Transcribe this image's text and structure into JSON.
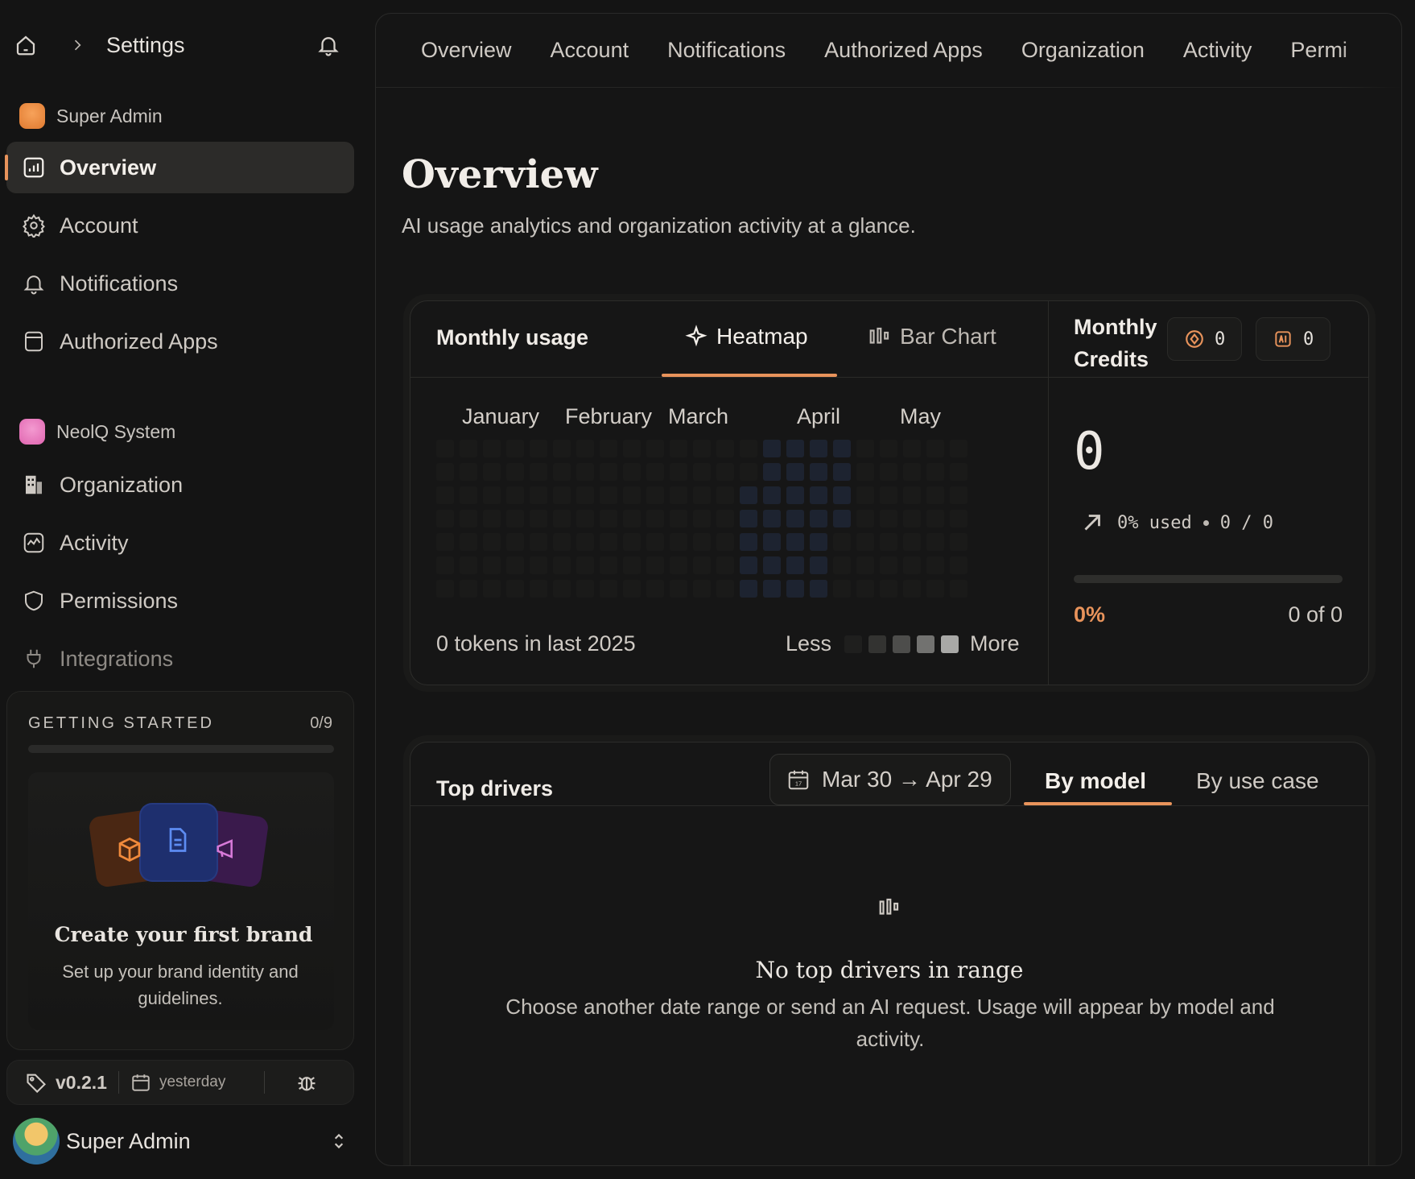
{
  "sidebar": {
    "breadcrumb": "Settings",
    "group1": {
      "name": "Super Admin"
    },
    "group1_items": [
      {
        "label": "Overview",
        "icon": "chart-icon",
        "active": true
      },
      {
        "label": "Account",
        "icon": "gear-icon"
      },
      {
        "label": "Notifications",
        "icon": "bell-icon"
      },
      {
        "label": "Authorized Apps",
        "icon": "app-window-icon"
      }
    ],
    "group2": {
      "name": "NeolQ System"
    },
    "group2_items": [
      {
        "label": "Organization",
        "icon": "building-icon"
      },
      {
        "label": "Activity",
        "icon": "activity-icon"
      },
      {
        "label": "Permissions",
        "icon": "shield-icon"
      },
      {
        "label": "Integrations",
        "icon": "plug-icon"
      }
    ],
    "getting_started": {
      "heading": "GETTING STARTED",
      "count": "0/9",
      "progress": 0,
      "card_title": "Create your first brand",
      "card_desc": "Set up your brand identity and guidelines."
    },
    "version": "v0.2.1",
    "updated": "yesterday",
    "user_name": "Super Admin"
  },
  "tabs": [
    "Overview",
    "Account",
    "Notifications",
    "Authorized Apps",
    "Organization",
    "Activity",
    "Permi"
  ],
  "page": {
    "title": "Overview",
    "subtitle": "AI usage analytics and organization activity at a glance."
  },
  "usage": {
    "title": "Monthly usage",
    "tab_heatmap": "Heatmap",
    "tab_bar": "Bar Chart",
    "months": [
      "January",
      "February",
      "March",
      "April",
      "May"
    ],
    "footer": "0 tokens in last 2025",
    "legend_less": "Less",
    "legend_more": "More",
    "legend_colors": [
      "#1f1f1e",
      "#333331",
      "#4d4d4b",
      "#727270",
      "#a8a8a6"
    ]
  },
  "credits": {
    "title_line1": "Monthly",
    "title_line2": "Credits",
    "chip1_value": "0",
    "chip2_value": "0",
    "big_value": "0",
    "used_pct": "0% used",
    "ratio": "0 / 0",
    "pct": "0%",
    "of_text": "0 of 0",
    "progress": 0,
    "accent": "#e8935b"
  },
  "drivers": {
    "title": "Top drivers",
    "date_range": "Mar 30 → Apr 29",
    "tab_model": "By model",
    "tab_usecase": "By use case",
    "empty_title": "No top drivers in range",
    "empty_desc": "Choose another date range or send an AI request. Usage will appear by model and activity."
  }
}
